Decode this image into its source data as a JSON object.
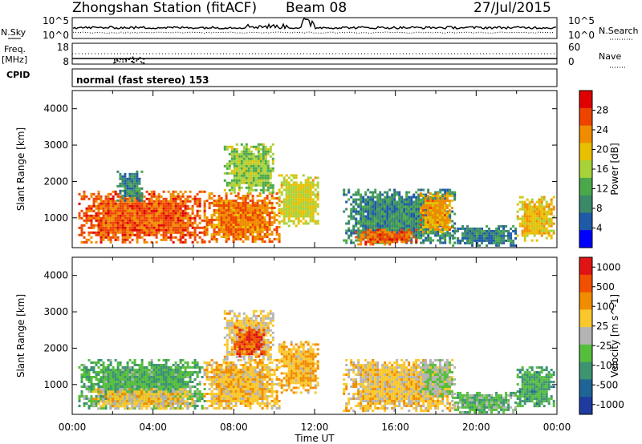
{
  "header": {
    "station": "Zhongshan Station (fitACF)",
    "beam": "Beam 08",
    "date": "27/Jul/2015"
  },
  "strip_labels": {
    "nsky": "N.Sky",
    "freq_top": "Freq.",
    "freq_unit": "[MHz]",
    "cpid": "CPID",
    "nsearch": "N.Search",
    "nave": "Nave",
    "cpid_value": "normal (fast stereo) 153"
  },
  "strip_ticks": {
    "nsky_left": [
      "10^5",
      "10^0"
    ],
    "nsky_right": [
      "10^5",
      "10^0"
    ],
    "freq_left": [
      "18",
      "8"
    ],
    "nave_right": [
      "60",
      "0"
    ]
  },
  "colors": {
    "power": [
      "#0000ff",
      "#1f5aa8",
      "#3a8a6a",
      "#4aa84a",
      "#a8d23a",
      "#e8c000",
      "#f08c00",
      "#ee4400",
      "#e00000"
    ],
    "velocity": [
      "#1e3ca0",
      "#1f6496",
      "#3c9470",
      "#55be3c",
      "#b4b4b4",
      "#fac82d",
      "#f08c00",
      "#f05000",
      "#e01414"
    ]
  },
  "chart_data": [
    {
      "type": "heatmap",
      "title": "Power",
      "xlabel": "",
      "ylabel": "Slant Range [km]",
      "colorbar_label": "Power [dB]",
      "colorbar_ticks": [
        "28",
        "24",
        "20",
        "16",
        "12",
        "8",
        "4"
      ],
      "colorbar_range": [
        0,
        32
      ],
      "x_ticks": [
        "00:00",
        "04:00",
        "08:00",
        "12:00",
        "16:00",
        "20:00",
        "00:00"
      ],
      "xlim_hours": [
        0,
        24
      ],
      "y_ticks": [
        "4000",
        "3000",
        "2000",
        "1000"
      ],
      "ylim": [
        180,
        4500
      ],
      "blobs": [
        {
          "t0": 0.3,
          "t1": 6.5,
          "r0": 350,
          "r1": 1750,
          "v": 26
        },
        {
          "t0": 6.5,
          "t1": 10.2,
          "r0": 350,
          "r1": 1700,
          "v": 24
        },
        {
          "t0": 7.5,
          "t1": 10.0,
          "r0": 1700,
          "r1": 3050,
          "v": 15
        },
        {
          "t0": 2.2,
          "t1": 3.4,
          "r0": 1500,
          "r1": 2300,
          "v": 9
        },
        {
          "t0": 10.2,
          "t1": 12.2,
          "r0": 800,
          "r1": 2200,
          "v": 18
        },
        {
          "t0": 13.4,
          "t1": 18.9,
          "r0": 300,
          "r1": 1800,
          "v": 9
        },
        {
          "t0": 14.0,
          "t1": 17.0,
          "r0": 300,
          "r1": 700,
          "v": 26
        },
        {
          "t0": 17.2,
          "t1": 18.8,
          "r0": 600,
          "r1": 1700,
          "v": 22
        },
        {
          "t0": 18.8,
          "t1": 22.0,
          "r0": 250,
          "r1": 800,
          "v": 8
        },
        {
          "t0": 22.0,
          "t1": 23.8,
          "r0": 400,
          "r1": 1600,
          "v": 20
        }
      ]
    },
    {
      "type": "heatmap",
      "title": "Velocity",
      "xlabel": "Time UT",
      "ylabel": "Slant Range [km]",
      "colorbar_label": "Velocity [m s^-1]",
      "colorbar_ticks": [
        "1000",
        "500",
        "100",
        "25",
        "-25",
        "-100",
        "-500",
        "-1000"
      ],
      "colorbar_range": [
        -1000,
        1000
      ],
      "x_ticks": [
        "00:00",
        "04:00",
        "08:00",
        "12:00",
        "16:00",
        "20:00",
        "00:00"
      ],
      "xlim_hours": [
        0,
        24
      ],
      "y_ticks": [
        "4000",
        "3000",
        "2000",
        "1000"
      ],
      "ylim": [
        180,
        4500
      ],
      "blobs": [
        {
          "t0": 0.3,
          "t1": 6.5,
          "r0": 350,
          "r1": 1700,
          "v": 300
        },
        {
          "t0": 1.0,
          "t1": 6.0,
          "r0": 350,
          "r1": 900,
          "v": -200
        },
        {
          "t0": 6.5,
          "t1": 10.2,
          "r0": 350,
          "r1": 1700,
          "v": -250
        },
        {
          "t0": 7.5,
          "t1": 10.0,
          "r0": 1700,
          "r1": 3050,
          "v": -150
        },
        {
          "t0": 8.0,
          "t1": 9.5,
          "r0": 1800,
          "r1": 2600,
          "v": -700
        },
        {
          "t0": 10.2,
          "t1": 12.2,
          "r0": 800,
          "r1": 2200,
          "v": -300
        },
        {
          "t0": 13.4,
          "t1": 18.9,
          "r0": 300,
          "r1": 1700,
          "v": -200
        },
        {
          "t0": 17.2,
          "t1": 18.8,
          "r0": 700,
          "r1": 1700,
          "v": 80
        },
        {
          "t0": 18.8,
          "t1": 22.0,
          "r0": 250,
          "r1": 800,
          "v": 250
        },
        {
          "t0": 22.0,
          "t1": 23.8,
          "r0": 400,
          "r1": 1500,
          "v": 350
        }
      ]
    }
  ],
  "axis": {
    "xlabel": "Time UT"
  }
}
